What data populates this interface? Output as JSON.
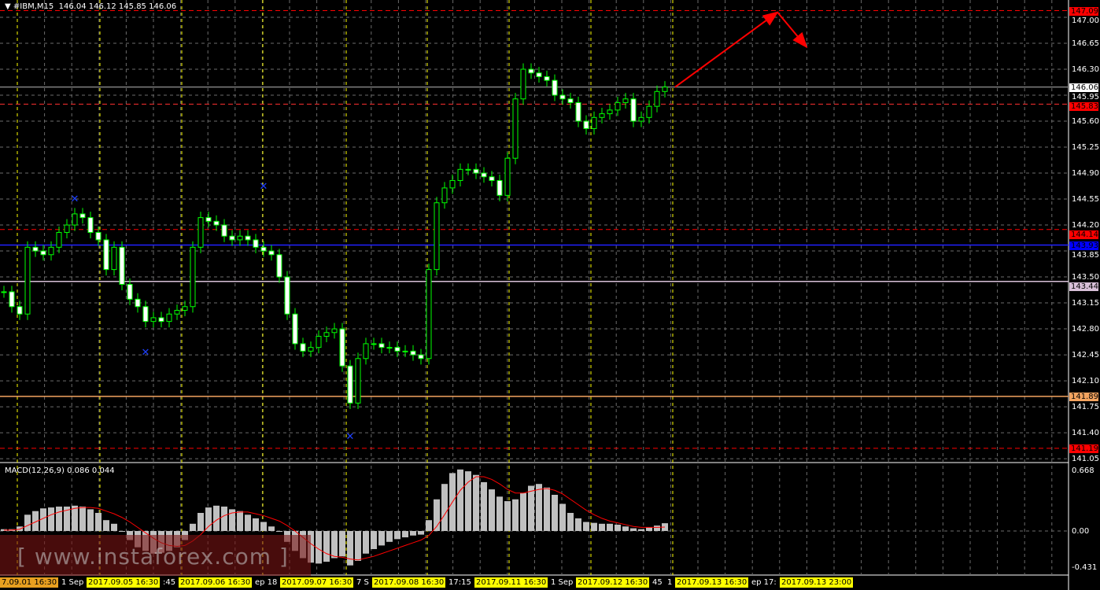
{
  "header": {
    "symbol": "#IBM,M15",
    "ohlc": "146.04 146.12 145.85 146.06"
  },
  "macd_label": "MACD(12,26,9) 0.086 0.044",
  "watermark": "[ www.instaforex.com ]",
  "colors": {
    "bull": "#00ff00",
    "grid": "#6b6b6b",
    "session": "#ffff00",
    "histogram": "#c0c0c0",
    "signal": "#ff0000",
    "arrow": "#ff0000"
  },
  "chart_data": {
    "type": "candlestick",
    "price_axis": {
      "ticks": [
        "147.00",
        "146.65",
        "146.30",
        "145.95",
        "145.60",
        "145.25",
        "144.90",
        "144.55",
        "144.20",
        "143.85",
        "143.50",
        "143.15",
        "142.80",
        "142.45",
        "142.10",
        "141.75",
        "141.40",
        "141.05"
      ],
      "range": [
        141.0,
        147.2
      ]
    },
    "closes": [
      143.3,
      143.1,
      143.0,
      143.9,
      143.85,
      143.8,
      143.9,
      144.1,
      144.2,
      144.35,
      144.3,
      144.1,
      144.0,
      143.6,
      143.9,
      143.4,
      143.2,
      143.1,
      142.9,
      142.95,
      142.9,
      143.0,
      143.05,
      143.1,
      143.9,
      144.3,
      144.25,
      144.2,
      144.05,
      144.0,
      144.05,
      144.0,
      143.9,
      143.85,
      143.8,
      143.5,
      143.0,
      142.6,
      142.5,
      142.55,
      142.7,
      142.75,
      142.8,
      142.3,
      141.8,
      142.4,
      142.6,
      142.6,
      142.55,
      142.55,
      142.5,
      142.5,
      142.45,
      142.4,
      143.6,
      144.5,
      144.7,
      144.8,
      144.95,
      144.95,
      144.9,
      144.85,
      144.8,
      144.6,
      145.1,
      145.9,
      146.3,
      146.25,
      146.2,
      146.15,
      145.95,
      145.9,
      145.85,
      145.6,
      145.5,
      145.65,
      145.7,
      145.75,
      145.85,
      145.9,
      145.6,
      145.65,
      145.8,
      146.0,
      146.06
    ],
    "bar_step_minutes": 15,
    "macd": {
      "range": [
        -0.431,
        0.668
      ],
      "ticks": [
        "0.668",
        "0.00",
        "-0.431"
      ],
      "histogram": [
        0.02,
        0.02,
        0.05,
        0.18,
        0.22,
        0.25,
        0.26,
        0.27,
        0.27,
        0.28,
        0.27,
        0.24,
        0.2,
        0.12,
        0.08,
        0.0,
        -0.1,
        -0.18,
        -0.22,
        -0.25,
        -0.24,
        -0.22,
        -0.18,
        -0.1,
        0.08,
        0.2,
        0.26,
        0.28,
        0.27,
        0.24,
        0.22,
        0.18,
        0.14,
        0.1,
        0.05,
        0.0,
        -0.12,
        -0.22,
        -0.3,
        -0.35,
        -0.36,
        -0.34,
        -0.3,
        -0.28,
        -0.38,
        -0.33,
        -0.25,
        -0.2,
        -0.16,
        -0.12,
        -0.09,
        -0.07,
        -0.05,
        -0.04,
        0.12,
        0.35,
        0.52,
        0.64,
        0.68,
        0.66,
        0.62,
        0.54,
        0.46,
        0.38,
        0.33,
        0.35,
        0.42,
        0.5,
        0.52,
        0.48,
        0.4,
        0.3,
        0.2,
        0.14,
        0.1,
        0.09,
        0.08,
        0.08,
        0.07,
        0.05,
        0.03,
        0.02,
        0.04,
        0.06,
        0.086
      ],
      "signal": [
        0.01,
        0.01,
        0.02,
        0.06,
        0.1,
        0.14,
        0.18,
        0.21,
        0.23,
        0.25,
        0.26,
        0.26,
        0.25,
        0.22,
        0.19,
        0.15,
        0.1,
        0.04,
        -0.02,
        -0.08,
        -0.13,
        -0.16,
        -0.17,
        -0.16,
        -0.11,
        -0.04,
        0.05,
        0.12,
        0.17,
        0.2,
        0.21,
        0.21,
        0.19,
        0.17,
        0.14,
        0.11,
        0.06,
        0.0,
        -0.07,
        -0.14,
        -0.2,
        -0.25,
        -0.28,
        -0.29,
        -0.31,
        -0.32,
        -0.3,
        -0.28,
        -0.25,
        -0.22,
        -0.19,
        -0.16,
        -0.13,
        -0.1,
        -0.05,
        0.05,
        0.18,
        0.32,
        0.45,
        0.54,
        0.6,
        0.6,
        0.57,
        0.52,
        0.46,
        0.42,
        0.42,
        0.44,
        0.46,
        0.47,
        0.45,
        0.41,
        0.35,
        0.29,
        0.23,
        0.18,
        0.14,
        0.11,
        0.09,
        0.07,
        0.05,
        0.04,
        0.04,
        0.04,
        0.044
      ]
    },
    "levels": [
      {
        "price": 147.09,
        "label": "147.09",
        "style": "dashed",
        "color": "#ff0000",
        "tag_bg": "#ff0000",
        "tag_fg": "#000000"
      },
      {
        "price": 146.06,
        "label": "146.06",
        "style": "solid",
        "color": "#808080",
        "tag_bg": "#ffffff",
        "tag_fg": "#000000"
      },
      {
        "price": 145.83,
        "label": "145.83",
        "style": "dashed",
        "color": "#ff3030",
        "tag_bg": "#ff0000",
        "tag_fg": "#000000"
      },
      {
        "price": 144.14,
        "label": "144.14",
        "style": "dashed",
        "color": "#ff0000",
        "tag_bg": "#ff0000",
        "tag_fg": "#000000"
      },
      {
        "price": 143.93,
        "label": "143.93",
        "style": "solid",
        "color": "#2020ff",
        "tag_bg": "#0000ff",
        "tag_fg": "#000000"
      },
      {
        "price": 143.44,
        "label": "143.44",
        "style": "solid",
        "color": "#d8c0d8",
        "tag_bg": "#d8c0d8",
        "tag_fg": "#000000"
      },
      {
        "price": 141.89,
        "label": "141.89",
        "style": "solid",
        "color": "#f4a460",
        "tag_bg": "#f4a460",
        "tag_fg": "#000000"
      },
      {
        "price": 141.19,
        "label": "141.19",
        "style": "dashed",
        "color": "#ff0000",
        "tag_bg": "#ff0000",
        "tag_fg": "#000000"
      }
    ],
    "fractal_markers": [
      {
        "bar": 9,
        "price": 144.55
      },
      {
        "bar": 18,
        "price": 142.48
      },
      {
        "bar": 33,
        "price": 144.72
      },
      {
        "bar": 44,
        "price": 141.35
      }
    ],
    "forecast_arrows": [
      {
        "from_bar": 85,
        "from_price": 146.06,
        "to_price": 147.09
      },
      {
        "to_price": 146.6
      }
    ],
    "time_labels": [
      {
        "text": "7.09.01 16:30",
        "boxed": true
      },
      {
        "text": "1 Sep",
        "boxed": false
      },
      {
        "text": "2017.09.05 16:30",
        "boxed": true
      },
      {
        "text": ":45",
        "boxed": false
      },
      {
        "text": "2017.09.06 16:30",
        "boxed": true
      },
      {
        "text": "ep 18",
        "boxed": false
      },
      {
        "text": "2017.09.07 16:30",
        "boxed": true
      },
      {
        "text": "7 S",
        "boxed": false
      },
      {
        "text": "2017.09.08 16:30",
        "boxed": true
      },
      {
        "text": "17:15",
        "boxed": false
      },
      {
        "text": "2017.09.11 16:30",
        "boxed": true
      },
      {
        "text": "1 Sep",
        "boxed": false
      },
      {
        "text": "2017.09.12 16:30",
        "boxed": true
      },
      {
        "text": "45",
        "boxed": false
      },
      {
        "text": "1",
        "boxed": false
      },
      {
        "text": "2017.09.13 16:30",
        "boxed": true
      },
      {
        "text": "ep 17:",
        "boxed": false
      },
      {
        "text": "2017.09.13 23:00",
        "boxed": true
      }
    ]
  }
}
